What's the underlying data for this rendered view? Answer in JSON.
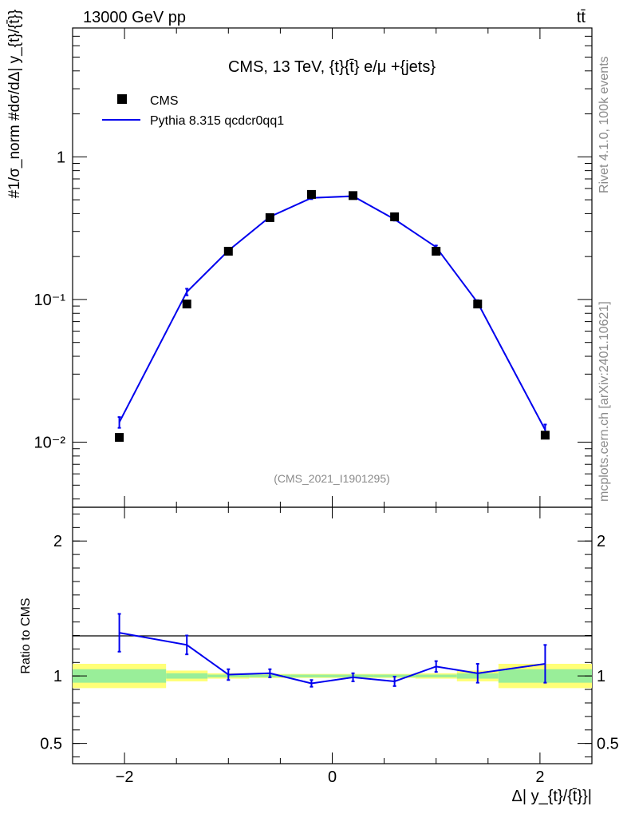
{
  "header": {
    "left": "13000 GeV pp",
    "right": "tt̄"
  },
  "side_labels": {
    "rivet": "Rivet 4.1.0,  100k events",
    "mcplots": "mcplots.cern.ch [arXiv:2401.10621]"
  },
  "chart_data": {
    "type": "line",
    "title": "CMS, 13 TeV, {t}{t̄} e/μ +{jets}",
    "watermark": "(CMS_2021_I1901295)",
    "xlabel": "Δ| y_{t}/{t̄}}|",
    "ylabel": "#1/σ_norm #dσ/dΔ| y_{t}/{t̄}}",
    "ratio_ylabel": "Ratio to CMS",
    "xlim": [
      -2.5,
      2.5
    ],
    "ylim": [
      0.0035,
      8
    ],
    "yscale": "log",
    "ratio_ylim": [
      0.35,
      2.25
    ],
    "x_ticks": [
      "−2",
      "0",
      "2"
    ],
    "x_tick_values": [
      -2,
      0,
      2
    ],
    "y_ticks": [
      "10⁻²",
      "10⁻¹",
      "1"
    ],
    "y_tick_values": [
      0.01,
      0.1,
      1
    ],
    "ratio_ticks": [
      "0.5",
      "1",
      "2"
    ],
    "ratio_tick_values": [
      0.5,
      1,
      2
    ],
    "legend": [
      {
        "label": "CMS",
        "kind": "marker",
        "color": "#000000"
      },
      {
        "label": "Pythia 8.315 qcdcr0qq1",
        "kind": "line",
        "color": "#0000ee"
      }
    ],
    "bins": [
      -2.5,
      -1.6,
      -1.2,
      -0.8,
      -0.4,
      0.0,
      0.4,
      0.8,
      1.2,
      1.6,
      2.5
    ],
    "x": [
      -2.05,
      -1.4,
      -1.0,
      -0.6,
      -0.2,
      0.2,
      0.6,
      1.0,
      1.4,
      2.05
    ],
    "series": [
      {
        "name": "CMS",
        "values": [
          0.0108,
          0.093,
          0.218,
          0.375,
          0.545,
          0.535,
          0.38,
          0.218,
          0.093,
          0.0112
        ]
      },
      {
        "name": "Pythia 8.315 qcdcr0qq1",
        "values": [
          0.0138,
          0.113,
          0.22,
          0.38,
          0.515,
          0.53,
          0.365,
          0.233,
          0.095,
          0.0122
        ],
        "err": [
          0.0012,
          0.006,
          0.006,
          0.008,
          0.01,
          0.01,
          0.008,
          0.006,
          0.004,
          0.0011
        ]
      }
    ],
    "ratio": {
      "values": [
        1.32,
        1.23,
        1.01,
        1.02,
        0.945,
        0.99,
        0.96,
        1.07,
        1.02,
        1.09
      ],
      "err": [
        0.14,
        0.07,
        0.04,
        0.03,
        0.025,
        0.03,
        0.035,
        0.04,
        0.07,
        0.14
      ],
      "band_inner": [
        0.05,
        0.02,
        0.01,
        0.01,
        0.01,
        0.01,
        0.01,
        0.01,
        0.02,
        0.05
      ],
      "band_outer": [
        0.09,
        0.04,
        0.02,
        0.015,
        0.015,
        0.015,
        0.015,
        0.02,
        0.04,
        0.09
      ]
    }
  }
}
